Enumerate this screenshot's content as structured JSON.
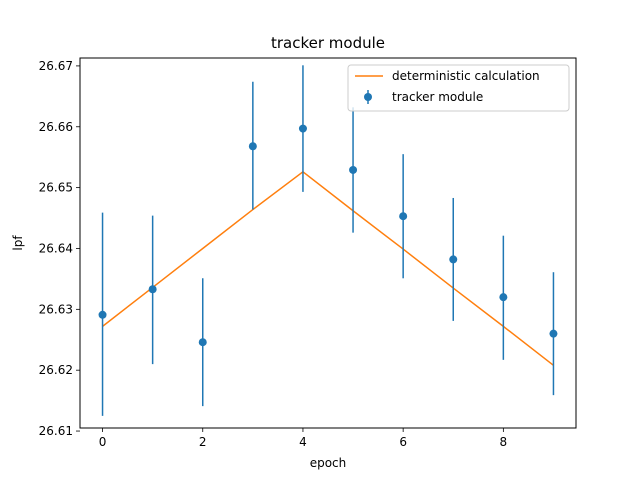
{
  "chart_data": {
    "type": "line",
    "title": "tracker module",
    "xlabel": "epoch",
    "ylabel": "lpf",
    "xlim": [
      -0.45,
      9.45
    ],
    "ylim": [
      26.6105,
      26.6713
    ],
    "xticks": [
      0,
      2,
      4,
      6,
      8
    ],
    "yticks": [
      26.61,
      26.62,
      26.63,
      26.64,
      26.65,
      26.66,
      26.67
    ],
    "grid": false,
    "legend_position": "top-right",
    "series": [
      {
        "name": "deterministic calculation",
        "kind": "line",
        "color": "#ff7f0e",
        "x": [
          0,
          1,
          2,
          3,
          4,
          5,
          6,
          7,
          8,
          9
        ],
        "y": [
          26.6272,
          26.6336,
          26.64,
          26.6464,
          26.6526,
          26.6462,
          26.6399,
          26.6335,
          26.6272,
          26.6208
        ]
      },
      {
        "name": "tracker module",
        "kind": "errorbar",
        "color": "#1f77b4",
        "x": [
          0,
          1,
          2,
          3,
          4,
          5,
          6,
          7,
          8,
          9
        ],
        "y": [
          26.6291,
          26.6333,
          26.6246,
          26.6568,
          26.6597,
          26.6529,
          26.6453,
          26.6382,
          26.632,
          26.626
        ],
        "yerr_low": [
          26.6125,
          26.621,
          26.6141,
          26.6464,
          26.6493,
          26.6426,
          26.6351,
          26.6281,
          26.6217,
          26.6159
        ],
        "yerr_high": [
          26.6459,
          26.6454,
          26.6351,
          26.6674,
          26.6701,
          26.6632,
          26.6555,
          26.6483,
          26.6421,
          26.6361
        ]
      }
    ]
  }
}
